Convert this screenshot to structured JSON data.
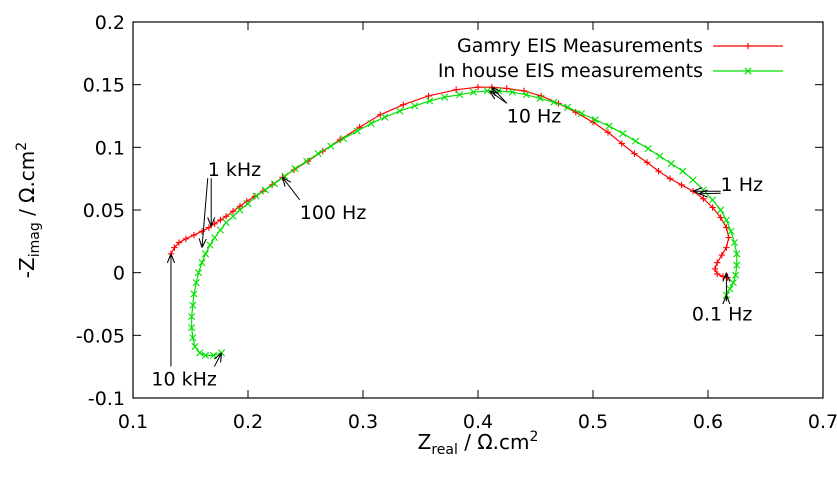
{
  "chart_data": {
    "type": "line",
    "title": "",
    "xlabel": {
      "main": "Z",
      "sub": "real",
      "rest": " / Ω.cm",
      "sup": "2"
    },
    "ylabel": {
      "main": "-Z",
      "sub": "imag",
      "rest": " / Ω.cm",
      "sup": "2"
    },
    "xlim": [
      0.1,
      0.7
    ],
    "ylim": [
      -0.1,
      0.2
    ],
    "xticks": [
      0.1,
      0.2,
      0.3,
      0.4,
      0.5,
      0.6,
      0.7
    ],
    "xtick_labels": [
      "0.1",
      "0.2",
      "0.3",
      "0.4",
      "0.5",
      "0.6",
      "0.7"
    ],
    "yticks": [
      -0.1,
      -0.05,
      0,
      0.05,
      0.1,
      0.15,
      0.2
    ],
    "ytick_labels": [
      "-0.1",
      "-0.05",
      "0",
      "0.05",
      "0.1",
      "0.15",
      "0.2"
    ],
    "grid": false,
    "legend_position": "top-right",
    "series": [
      {
        "name": "Gamry EIS Measurements",
        "color": "#ff0000",
        "marker": "plus",
        "x": [
          0.133,
          0.136,
          0.14,
          0.146,
          0.153,
          0.16,
          0.166,
          0.171,
          0.176,
          0.181,
          0.187,
          0.193,
          0.199,
          0.206,
          0.213,
          0.221,
          0.23,
          0.24,
          0.252,
          0.265,
          0.28,
          0.297,
          0.315,
          0.335,
          0.357,
          0.381,
          0.4,
          0.412,
          0.425,
          0.44,
          0.455,
          0.47,
          0.485,
          0.5,
          0.513,
          0.525,
          0.536,
          0.547,
          0.557,
          0.567,
          0.577,
          0.587,
          0.596,
          0.604,
          0.611,
          0.616,
          0.618,
          0.616,
          0.612,
          0.608,
          0.606,
          0.608,
          0.613,
          0.617
        ],
        "y": [
          0.015,
          0.02,
          0.024,
          0.027,
          0.03,
          0.033,
          0.036,
          0.039,
          0.042,
          0.045,
          0.049,
          0.053,
          0.057,
          0.061,
          0.065,
          0.07,
          0.076,
          0.082,
          0.089,
          0.097,
          0.106,
          0.116,
          0.126,
          0.134,
          0.141,
          0.146,
          0.148,
          0.148,
          0.147,
          0.145,
          0.141,
          0.135,
          0.128,
          0.12,
          0.112,
          0.103,
          0.095,
          0.088,
          0.081,
          0.075,
          0.07,
          0.065,
          0.059,
          0.052,
          0.044,
          0.036,
          0.028,
          0.02,
          0.014,
          0.008,
          0.003,
          -0.001,
          -0.003,
          -0.004
        ]
      },
      {
        "name": "In house EIS measurements",
        "color": "#00e000",
        "marker": "x",
        "x": [
          0.177,
          0.17,
          0.163,
          0.158,
          0.154,
          0.152,
          0.151,
          0.151,
          0.152,
          0.153,
          0.155,
          0.157,
          0.16,
          0.163,
          0.167,
          0.171,
          0.176,
          0.181,
          0.187,
          0.193,
          0.2,
          0.207,
          0.215,
          0.223,
          0.232,
          0.241,
          0.251,
          0.261,
          0.272,
          0.283,
          0.295,
          0.307,
          0.319,
          0.332,
          0.345,
          0.358,
          0.371,
          0.384,
          0.396,
          0.408,
          0.418,
          0.43,
          0.442,
          0.454,
          0.466,
          0.478,
          0.49,
          0.502,
          0.514,
          0.526,
          0.537,
          0.548,
          0.558,
          0.568,
          0.578,
          0.587,
          0.596,
          0.604,
          0.611,
          0.616,
          0.62,
          0.623,
          0.625,
          0.625,
          0.624,
          0.622,
          0.619,
          0.616
        ],
        "y": [
          -0.064,
          -0.066,
          -0.066,
          -0.064,
          -0.059,
          -0.052,
          -0.044,
          -0.035,
          -0.026,
          -0.017,
          -0.008,
          0.0,
          0.008,
          0.015,
          0.022,
          0.028,
          0.034,
          0.04,
          0.045,
          0.05,
          0.055,
          0.061,
          0.066,
          0.071,
          0.077,
          0.083,
          0.089,
          0.095,
          0.101,
          0.107,
          0.113,
          0.119,
          0.124,
          0.129,
          0.133,
          0.137,
          0.14,
          0.142,
          0.144,
          0.145,
          0.145,
          0.144,
          0.142,
          0.139,
          0.136,
          0.132,
          0.127,
          0.122,
          0.117,
          0.111,
          0.105,
          0.099,
          0.093,
          0.087,
          0.081,
          0.074,
          0.066,
          0.058,
          0.05,
          0.042,
          0.033,
          0.024,
          0.015,
          0.006,
          -0.002,
          -0.008,
          -0.013,
          -0.018
        ]
      }
    ],
    "annotations": [
      {
        "text": "10 Hz",
        "x": 0.425,
        "y": 0.12,
        "targets": [
          [
            0.412,
            0.148
          ],
          [
            0.41,
            0.145
          ]
        ]
      },
      {
        "text": "1 kHz",
        "x": 0.165,
        "y": 0.077,
        "targets": [
          [
            0.168,
            0.037
          ],
          [
            0.16,
            0.02
          ]
        ]
      },
      {
        "text": "100 Hz",
        "x": 0.245,
        "y": 0.043,
        "targets": [
          [
            0.23,
            0.076
          ]
        ]
      },
      {
        "text": "1 Hz",
        "x": 0.611,
        "y": 0.065,
        "targets": [
          [
            0.587,
            0.065
          ],
          [
            0.592,
            0.063
          ]
        ]
      },
      {
        "text": "0.1 Hz",
        "x": 0.586,
        "y": -0.038,
        "targets": [
          [
            0.616,
            0.0
          ],
          [
            0.616,
            -0.018
          ]
        ]
      },
      {
        "text": "10 kHz",
        "x": 0.116,
        "y": -0.09,
        "targets": [
          [
            0.133,
            0.015
          ],
          [
            0.177,
            -0.064
          ]
        ]
      }
    ]
  }
}
